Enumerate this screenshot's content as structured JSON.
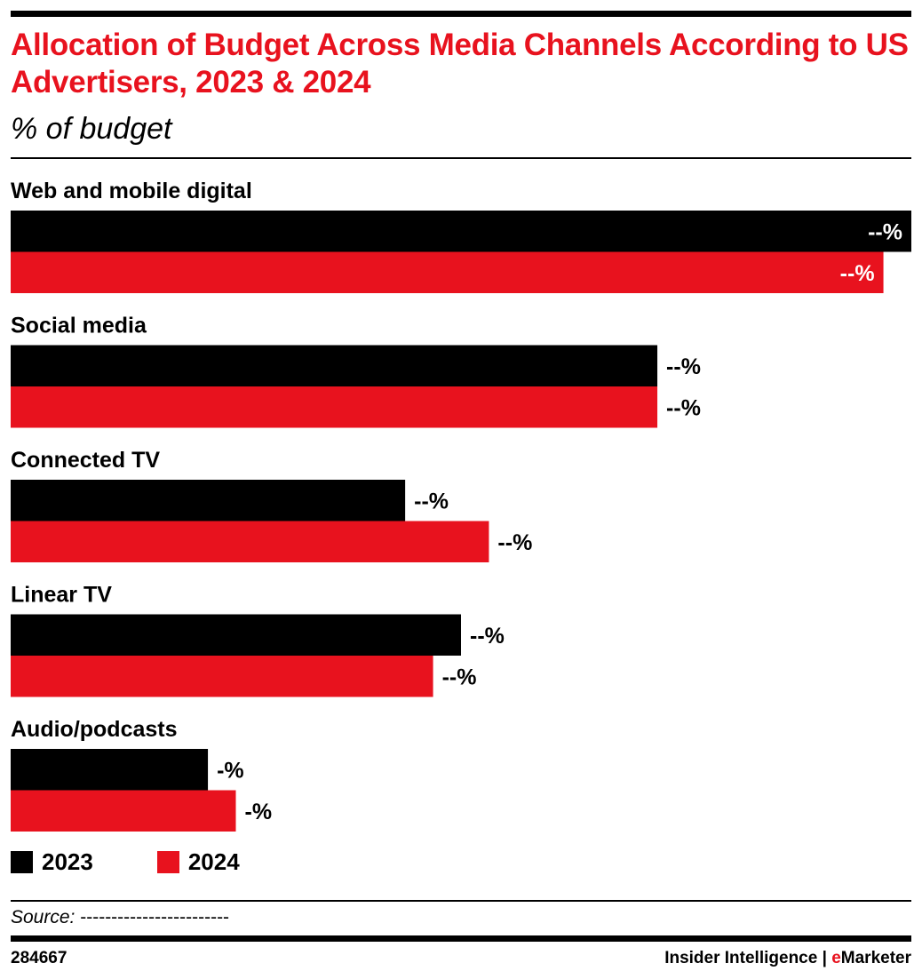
{
  "title": "Allocation of Budget Across Media Channels According to US Advertisers, 2023 & 2024",
  "subtitle": "% of budget",
  "colors": {
    "accent": "#e8121e",
    "series_2023": "#000000",
    "series_2024": "#e8121e"
  },
  "chart_data": {
    "type": "bar",
    "orientation": "horizontal",
    "categories": [
      "Web and mobile digital",
      "Social media",
      "Connected TV",
      "Linear TV",
      "Audio/podcasts"
    ],
    "series": [
      {
        "name": "2023",
        "color": "#000000",
        "values": [
          100,
          71.8,
          43.8,
          50,
          21.9
        ],
        "labels": [
          "--%",
          "--%",
          "--%",
          "--%",
          "-%"
        ]
      },
      {
        "name": "2024",
        "color": "#e8121e",
        "values": [
          96.9,
          71.8,
          53.1,
          46.9,
          25
        ],
        "labels": [
          "--%",
          "--%",
          "--%",
          "--%",
          "-%"
        ]
      }
    ],
    "xlim": [
      0,
      100
    ],
    "legend": "bottom-left",
    "grid": false
  },
  "source": {
    "label": "Source:",
    "text": "------------------------"
  },
  "footer": {
    "id": "284667",
    "brand_left": "Insider Intelligence",
    "separator": "|",
    "brand_accent_e": "e",
    "brand_right": "Marketer"
  }
}
